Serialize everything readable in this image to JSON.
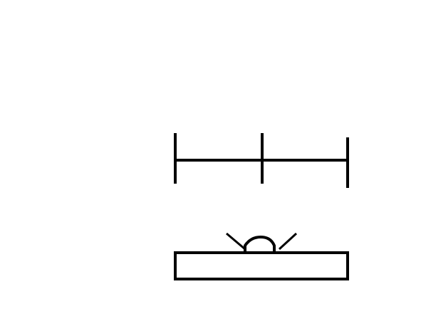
{
  "diagram": {
    "colors": {
      "background": "#ffffff",
      "stroke": "#000000"
    },
    "dimension_marker": {
      "segments": 2,
      "ticks": 3
    },
    "block": {
      "shape": "rectangle"
    },
    "lamp": {
      "shape": "dome-with-light-rays",
      "rays": 2
    }
  }
}
